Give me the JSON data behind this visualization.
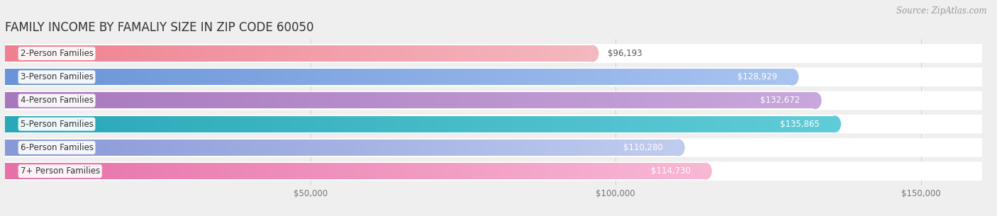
{
  "title": "FAMILY INCOME BY FAMALIY SIZE IN ZIP CODE 60050",
  "source": "Source: ZipAtlas.com",
  "categories": [
    "2-Person Families",
    "3-Person Families",
    "4-Person Families",
    "5-Person Families",
    "6-Person Families",
    "7+ Person Families"
  ],
  "values": [
    96193,
    128929,
    132672,
    135865,
    110280,
    114730
  ],
  "value_labels": [
    "$96,193",
    "$128,929",
    "$132,672",
    "$135,865",
    "$110,280",
    "$114,730"
  ],
  "bar_colors_left": [
    "#F08090",
    "#6A94D8",
    "#A878BC",
    "#28A8B8",
    "#8898D8",
    "#E870A8"
  ],
  "bar_colors_right": [
    "#F4B8C0",
    "#A8C4F0",
    "#C8A8DC",
    "#60CCD8",
    "#C0CCEE",
    "#F8B8D4"
  ],
  "xlim": [
    0,
    160000
  ],
  "xtick_vals": [
    50000,
    100000,
    150000
  ],
  "xtick_labels": [
    "$50,000",
    "$100,000",
    "$150,000"
  ],
  "background_color": "#efefef",
  "row_bg_color": "#ffffff",
  "title_fontsize": 12,
  "label_fontsize": 8.5,
  "value_fontsize": 8.5,
  "source_fontsize": 8.5,
  "value_inside_threshold": 110000
}
